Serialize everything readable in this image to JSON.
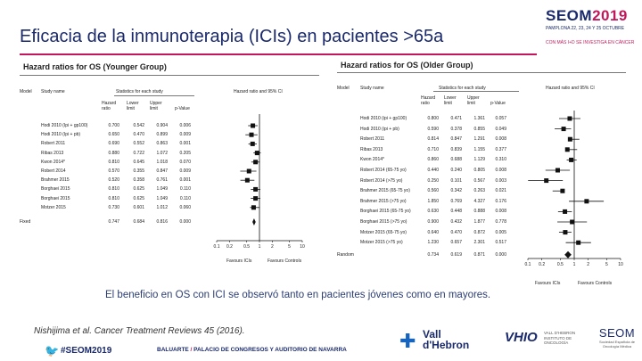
{
  "slide": {
    "title": "Eficacia de la inmunoterapia  (ICIs) en pacientes >65a",
    "conclusion": "El beneficio en OS con ICI se observó tanto en pacientes jóvenes como en mayores.",
    "citation": "Nishijima et al. Cancer Treatment Reviews 45 (2016)."
  },
  "header_logo": {
    "brand": "SEOM",
    "year": "2019",
    "sub": "PAMPLONA 22, 23, 24 Y 25 OCTUBRE",
    "tag": "CON MÁS I+D SE INVESTIGA  EN CÁNCER"
  },
  "footer": {
    "hashtag": "#SEOM2019",
    "venue_a": "BALUARTE",
    "venue_sep": " / ",
    "venue_b": "PALACIO DE CONGRESOS Y AUDITORIO DE NAVARRA",
    "vh_line1": "Vall",
    "vh_line2": "d'Hebron",
    "vhio_mark": "VHIO",
    "vhio_sub": "VALL D'HEBRON INSTITUTO DE ONCOLOGÍA",
    "seom_mark": "SEOM",
    "seom_sub": "Sociedad Española de Oncología Médica"
  },
  "left_forest": {
    "title": "Hazard ratios for OS (Younger  Group)",
    "h_model": "Model",
    "h_study": "Study name",
    "h_stats": "Statistics for each study",
    "h_plot": "Hazard ratio and 95% CI",
    "h_hr": "Hazard ratio",
    "h_lower": "Lower limit",
    "h_upper": "Upper limit",
    "h_p": "p-Value",
    "rows": [
      {
        "study": "Hodi 2010 (Ipi + gp100)",
        "hr": "0.700",
        "lo": "0.542",
        "up": "0.904",
        "p": "0.006"
      },
      {
        "study": "Hodi 2010 (Ipi + pb)",
        "hr": "0.650",
        "lo": "0.470",
        "up": "0.899",
        "p": "0.009"
      },
      {
        "study": "Robert 2011",
        "hr": "0.690",
        "lo": "0.552",
        "up": "0.863",
        "p": "0.001"
      },
      {
        "study": "Ribas 2013",
        "hr": "0.880",
        "lo": "0.722",
        "up": "1.072",
        "p": "0.205"
      },
      {
        "study": "Kwon 2014*",
        "hr": "0.810",
        "lo": "0.645",
        "up": "1.018",
        "p": "0.070"
      },
      {
        "study": "Robert 2014",
        "hr": "0.570",
        "lo": "0.355",
        "up": "0.847",
        "p": "0.009"
      },
      {
        "study": "Brahmer 2015",
        "hr": "0.520",
        "lo": "0.358",
        "up": "0.761",
        "p": "0.001"
      },
      {
        "study": "Borghaei 2015",
        "hr": "0.810",
        "lo": "0.625",
        "up": "1.049",
        "p": "0.110"
      },
      {
        "study": "Borghaei 2015",
        "hr": "0.810",
        "lo": "0.625",
        "up": "1.049",
        "p": "0.110"
      },
      {
        "study": "Motzer 2015",
        "hr": "0.730",
        "lo": "0.601",
        "up": "1.012",
        "p": "0.060"
      }
    ],
    "pooled_label": "Fixed",
    "pooled": {
      "hr": "0.747",
      "lo": "0.684",
      "up": "0.816",
      "p": "0.000"
    },
    "ticks": [
      "0.1",
      "0.2",
      "0.5",
      "1",
      "2",
      "5",
      "10"
    ],
    "fav_left": "Favours ICIs",
    "fav_right": "Favours Controls"
  },
  "right_forest": {
    "title": "Hazard ratios for OS (Older  Group)",
    "h_model": "Model",
    "h_study": "Study name",
    "h_stats": "Statistics for each study",
    "h_plot": "Hazard ratio and 95% CI",
    "h_hr": "Hazard ratio",
    "h_lower": "Lower limit",
    "h_upper": "Upper limit",
    "h_p": "p-Value",
    "rows": [
      {
        "study": "Hodi 2010 (ipi + gp100)",
        "hr": "0.800",
        "lo": "0.471",
        "up": "1.361",
        "p": "0.057"
      },
      {
        "study": "Hodi 2010 (ipi + pb)",
        "hr": "0.590",
        "lo": "0.378",
        "up": "0.855",
        "p": "0.049"
      },
      {
        "study": "Robert 2011",
        "hr": "0.814",
        "lo": "0.847",
        "up": "1.291",
        "p": "0.008"
      },
      {
        "study": "Ribas 2013",
        "hr": "0.710",
        "lo": "0.839",
        "up": "1.155",
        "p": "0.377"
      },
      {
        "study": "Kwon 2014*",
        "hr": "0.860",
        "lo": "0.688",
        "up": "1.129",
        "p": "0.310"
      },
      {
        "study": "Robert 2014 (65-75 yo)",
        "hr": "0.440",
        "lo": "0.240",
        "up": "0.805",
        "p": "0.008"
      },
      {
        "study": "Robert 2014 (>75 yo)",
        "hr": "0.250",
        "lo": "0.101",
        "up": "0.567",
        "p": "0.003"
      },
      {
        "study": "Brahmer 2015 (65-75 yo)",
        "hr": "0.560",
        "lo": "0.342",
        "up": "0.263",
        "p": "0.021"
      },
      {
        "study": "Brahmer 2015 (>75 yo)",
        "hr": "1.850",
        "lo": "0.769",
        "up": "4.327",
        "p": "0.176"
      },
      {
        "study": "Borghaei 2015 (65-75 yo)",
        "hr": "0.630",
        "lo": "0.448",
        "up": "0.888",
        "p": "0.008"
      },
      {
        "study": "Borghaei 2015 (>75 yo)",
        "hr": "0.900",
        "lo": "0.432",
        "up": "1.877",
        "p": "0.778"
      },
      {
        "study": "Motzer 2015 (65-75 yo)",
        "hr": "0.640",
        "lo": "0.470",
        "up": "0.872",
        "p": "0.005"
      },
      {
        "study": "Motzer 2015 (>75 yo)",
        "hr": "1.230",
        "lo": "0.657",
        "up": "2.301",
        "p": "0.517"
      }
    ],
    "pooled_label": "Random",
    "pooled": {
      "hr": "0.734",
      "lo": "0.619",
      "up": "0.871",
      "p": "0.000"
    },
    "ticks": [
      "0.1",
      "0.2",
      "0.5",
      "1",
      "2",
      "5",
      "10"
    ],
    "fav_left": "Favours ICIs",
    "fav_right": "Favours Controls"
  }
}
